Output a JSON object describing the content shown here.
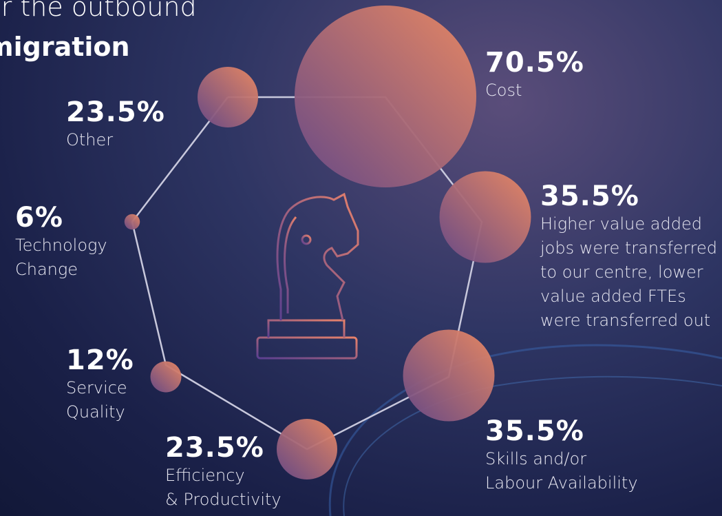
{
  "chart_data": {
    "type": "bubble",
    "title_lines": [
      "for the outbound",
      "migration"
    ],
    "categories": [
      "Cost",
      "Higher value added\njobs were transferred\nto our centre, lower\nvalue added FTEs\nwere transferred out",
      "Skills and/or\nLabour Availability",
      "Efficiency\n& Productivity",
      "Service\nQuality",
      "Technology\nChange",
      "Other"
    ],
    "values": [
      70.5,
      35.5,
      35.5,
      23.5,
      12,
      6,
      23.5
    ],
    "value_labels": [
      "70.5%",
      "35.5%",
      "35.5%",
      "23.5%",
      "12%",
      "6%",
      "23.5%"
    ]
  }
}
